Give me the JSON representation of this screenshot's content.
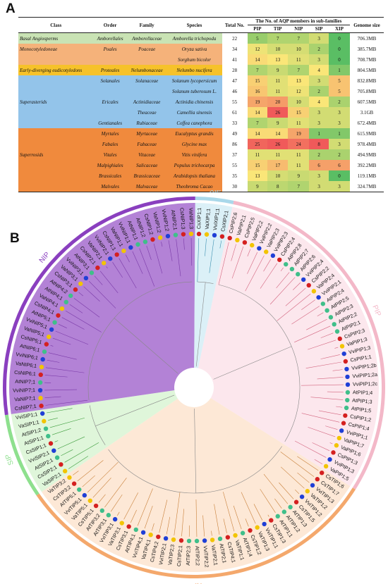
{
  "panel_a_label": "A",
  "panel_b_label": "B",
  "table": {
    "headers": {
      "class": "Class",
      "order": "Order",
      "family": "Family",
      "species": "Species",
      "total": "Total No.",
      "group": "The No. of AQP members in sub-families",
      "pip": "PIP",
      "tip": "TIP",
      "nip": "NIP",
      "sip": "SIP",
      "xip": "XIP",
      "genome": "Genome size"
    },
    "class_colors": {
      "basal": "#c9e3b4",
      "mono": "#f5b27a",
      "early": "#f6c22a",
      "super_asterids": "#93c4ea",
      "super_rosids": "#f08a3d"
    },
    "rows": [
      {
        "cls": "Basal Angiosperms",
        "ord": "Amborellales",
        "fam": "Amborellaceae",
        "sp": "Amborella trichopoda",
        "total": "22",
        "pip": "5",
        "tip": "7",
        "nip": "7",
        "sip": "3",
        "xip": "0",
        "genome": "706.3MB"
      },
      {
        "cls": "Monocotyledoneae",
        "ord": "Poales",
        "fam": "Poaceae",
        "sp": "Oryza sativa",
        "total": "34",
        "pip": "12",
        "tip": "10",
        "nip": "10",
        "sip": "2",
        "xip": "0",
        "genome": "385.7MB"
      },
      {
        "cls": "",
        "ord": "",
        "fam": "",
        "sp": "Sorghum bicolor",
        "total": "41",
        "pip": "14",
        "tip": "13",
        "nip": "11",
        "sip": "3",
        "xip": "0",
        "genome": "708.7MB"
      },
      {
        "cls": "Early-diverging eudicotyledons",
        "ord": "Proteales",
        "fam": "Nelumbonaceae",
        "sp": "Nelumbo nucifera",
        "total": "28",
        "pip": "7",
        "tip": "9",
        "nip": "7",
        "sip": "4",
        "xip": "1",
        "genome": "804.5MB"
      },
      {
        "cls": "",
        "ord": "Solanales",
        "fam": "Solanaceae",
        "sp": "Solanum lycopersicum",
        "total": "47",
        "pip": "15",
        "tip": "11",
        "nip": "13",
        "sip": "3",
        "xip": "5",
        "genome": "832.8MB"
      },
      {
        "cls": "",
        "ord": "",
        "fam": "",
        "sp": "Solanum tuberosum L.",
        "total": "46",
        "pip": "16",
        "tip": "11",
        "nip": "12",
        "sip": "2",
        "xip": "5",
        "genome": "705.8MB"
      },
      {
        "cls": "Superasterids",
        "ord": "Ericales",
        "fam": "Actinidiaceae",
        "sp": "Actinidia chinensis",
        "total": "55",
        "pip": "19",
        "tip": "20",
        "nip": "10",
        "sip": "4",
        "xip": "2",
        "genome": "607.5MB"
      },
      {
        "cls": "",
        "ord": "",
        "fam": "Theaceae",
        "sp": "Camellia sinensis",
        "total": "61",
        "pip": "14",
        "tip": "26",
        "nip": "15",
        "sip": "3",
        "xip": "3",
        "genome": "3.1GB"
      },
      {
        "cls": "",
        "ord": "Gentianales",
        "fam": "Rubiaceae",
        "sp": "Coffea canephora",
        "total": "33",
        "pip": "7",
        "tip": "9",
        "nip": "11",
        "sip": "3",
        "xip": "3",
        "genome": "672.4MB"
      },
      {
        "cls": "",
        "ord": "Myrtales",
        "fam": "Myrtaceae",
        "sp": "Eucalyptus grandis",
        "total": "49",
        "pip": "14",
        "tip": "14",
        "nip": "19",
        "sip": "1",
        "xip": "1",
        "genome": "615.9MB"
      },
      {
        "cls": "",
        "ord": "Fabales",
        "fam": "Fabaceae",
        "sp": "Glycine max",
        "total": "86",
        "pip": "25",
        "tip": "26",
        "nip": "24",
        "sip": "8",
        "xip": "3",
        "genome": "978.4MB"
      },
      {
        "cls": "Superrosids",
        "ord": "Vitales",
        "fam": "Vitaceae",
        "sp": "Vitis vinifera",
        "total": "37",
        "pip": "11",
        "tip": "11",
        "nip": "11",
        "sip": "2",
        "xip": "2",
        "genome": "494.9MB"
      },
      {
        "cls": "",
        "ord": "Malpighiales",
        "fam": "Salicaceae",
        "sp": "Populus trichocarpa",
        "total": "55",
        "pip": "15",
        "tip": "17",
        "nip": "11",
        "sip": "6",
        "xip": "6",
        "genome": "392.2MB"
      },
      {
        "cls": "",
        "ord": "Brassicales",
        "fam": "Brassicaceae",
        "sp": "Arabidopsis thaliana",
        "total": "35",
        "pip": "13",
        "tip": "10",
        "nip": "9",
        "sip": "3",
        "xip": "0",
        "genome": "119.1MB"
      },
      {
        "cls": "",
        "ord": "Malvales",
        "fam": "Malvaceae",
        "sp": "Theobroma Cacao",
        "total": "30",
        "pip": "9",
        "tip": "8",
        "nip": "7",
        "sip": "3",
        "xip": "3",
        "genome": "324.7MB"
      }
    ]
  },
  "tree": {
    "subfamilies": [
      {
        "name": "PIP",
        "color": "#f3b8c8",
        "bg": "#fbe3ea"
      },
      {
        "name": "TIP",
        "color": "#f4a86c",
        "bg": "#fde4cf"
      },
      {
        "name": "SIP",
        "color": "#8ee08e",
        "bg": "#d9f5d4"
      },
      {
        "name": "NIP",
        "color": "#8a3fbf",
        "bg": "#a66ccf"
      },
      {
        "name": "XIP",
        "color": "#a9d8ea",
        "bg": "#d5edf6"
      }
    ],
    "leaves": [
      "CsPIP2;6",
      "VaPIP2;1",
      "CsPIP2;5",
      "VaPIP2;2",
      "VviPIP2;2",
      "VaPIP2;3",
      "VviPIP2;3",
      "CsPIP2;4",
      "AtPIP2;8",
      "AtPIP2;7",
      "AtPIP2;6",
      "VviPIP2;4",
      "CsPIP2;2",
      "VaPIP2;4",
      "VviPIP2;1",
      "AtPIP2;4",
      "AtPIP2;5",
      "AtPIP2;3",
      "AtPIP2;2",
      "AtPIP2;1",
      "CsPIP2;3",
      "VaPIP1;3",
      "VviPIP1;3",
      "CsPIP1;1",
      "VviPIP1;2b",
      "VviPIP1;2a",
      "VviPIP1;2c",
      "AtPIP1;4",
      "AtPIP1;3",
      "AtPIP1;5",
      "CsPIP1;2",
      "CsPIP1;4",
      "VviPIP1;1",
      "VaPIP1;7",
      "VaPIP1;6",
      "CsPIP1;3",
      "VviPIP1;3",
      "VaPIP1;5",
      "CsTIP1;6",
      "CsTIP1;7",
      "VviTIP1;3",
      "VaTIP1;2",
      "VviTIP1;2",
      "CsTIP1;5",
      "AtTIP1;3",
      "AtTIP1;2",
      "AtTIP1;1",
      "CsTIP1;3",
      "VviTIP1;1",
      "VaTIP1;3",
      "CsTIP1;2",
      "AtTIP1;4",
      "VaTIP1;1",
      "CsTIP4;1",
      "AtTIP2;1",
      "VaTIP2;1",
      "VviTIP2;2",
      "AtTIP2;2",
      "AtTIP2;3",
      "CsTIP2;1",
      "VaTIP2;3",
      "VviTIP2;1",
      "CsTIP4;2",
      "VaTIP4;1",
      "VviTIP4;1",
      "AtTIP4;1",
      "CsTIP3;1",
      "VaTIP3;1",
      "VviTIP3;1",
      "AtTIP3;1",
      "AtTIP3;2",
      "CsTIP5;1",
      "VaTIP5;1",
      "VviTIP5;1",
      "AtTIP5;1",
      "CsTIP3;2",
      "VaTIP3;2",
      "VaSIP2;1",
      "CsSIP2;1",
      "AtSIP2;1",
      "VviSIP2;1",
      "CsSIP1;1",
      "AtSIP1;1",
      "AtSIP1;2",
      "VaSIP1;1",
      "VviSIP1;1",
      "CsNIP7;1",
      "VaNIP7;1",
      "VviNIP7;1",
      "AtNIP7;1",
      "CsNIP6;1",
      "VaNIP6;1",
      "VviNIP6;1",
      "AtNIP6;1",
      "CsNIP5;1",
      "VaNIP5;1",
      "VviNIP5;1",
      "AtNIP5;1",
      "CsNIP4;1",
      "VaNIP4;1",
      "AtNIP4;1",
      "AtNIP4;2",
      "CsNIP3;1",
      "VaNIP3;1",
      "VviNIP3;1",
      "AtNIP3;1",
      "CsNIP2;1",
      "VaNIP2;1",
      "VviNIP2;1",
      "CsNIP1;1",
      "VaNIP1;1",
      "VviNIP1;1",
      "AtNIP1;1",
      "AtNIP1;2",
      "CsNIP1;2",
      "VaNIP1;2",
      "VviNIP1;2",
      "AtNIP2;1",
      "CsNIP1;3",
      "VaNIP1;3",
      "CsXIP1;1",
      "VaXIP1;1",
      "VviXIP1;1",
      "CsXIP2;1"
    ]
  }
}
